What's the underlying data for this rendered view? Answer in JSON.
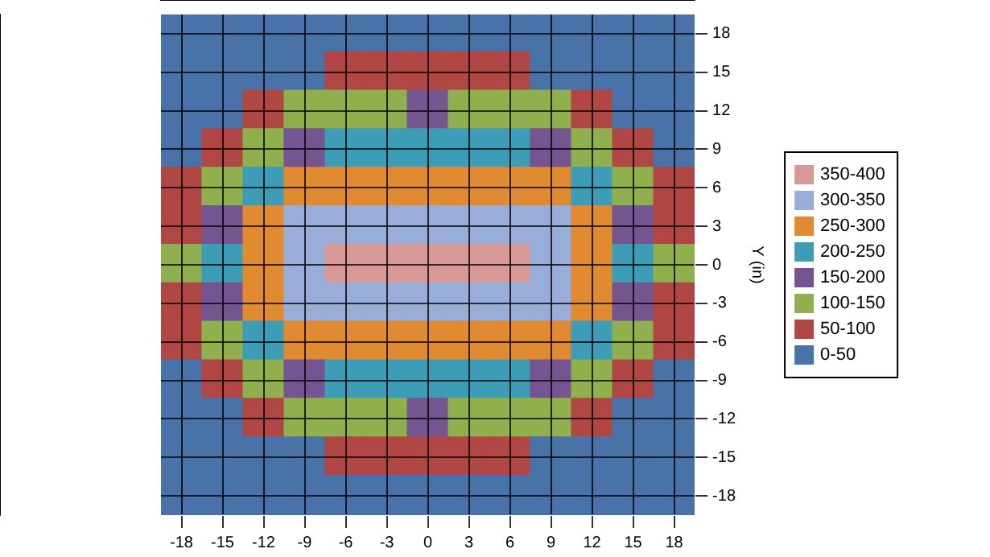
{
  "chart_data": {
    "type": "heatmap",
    "ylabel": "Y (in)",
    "categories": [
      "-18",
      "-15",
      "-12",
      "-9",
      "-6",
      "-3",
      "0",
      "3",
      "6",
      "9",
      "12",
      "15",
      "18"
    ],
    "y_categories": [
      "18",
      "15",
      "12",
      "9",
      "6",
      "3",
      "0",
      "-3",
      "-6",
      "-9",
      "-12",
      "-15",
      "-18"
    ],
    "cells": [
      [
        25,
        25,
        25,
        25,
        25,
        25,
        25,
        25,
        25,
        25,
        25,
        25,
        25
      ],
      [
        25,
        25,
        25,
        25,
        75,
        75,
        75,
        75,
        75,
        25,
        25,
        25,
        25
      ],
      [
        25,
        25,
        75,
        125,
        125,
        125,
        175,
        125,
        125,
        125,
        75,
        25,
        25
      ],
      [
        25,
        75,
        125,
        175,
        225,
        225,
        225,
        225,
        225,
        175,
        125,
        75,
        25
      ],
      [
        75,
        125,
        225,
        275,
        275,
        275,
        275,
        275,
        275,
        275,
        225,
        125,
        75
      ],
      [
        75,
        175,
        275,
        325,
        325,
        325,
        325,
        325,
        325,
        325,
        275,
        175,
        75
      ],
      [
        125,
        225,
        275,
        325,
        375,
        375,
        375,
        375,
        375,
        325,
        275,
        225,
        125
      ],
      [
        75,
        175,
        275,
        325,
        325,
        325,
        325,
        325,
        325,
        325,
        275,
        175,
        75
      ],
      [
        75,
        125,
        225,
        275,
        275,
        275,
        275,
        275,
        275,
        275,
        225,
        125,
        75
      ],
      [
        25,
        75,
        125,
        175,
        225,
        225,
        225,
        225,
        225,
        175,
        125,
        75,
        25
      ],
      [
        25,
        25,
        75,
        125,
        125,
        125,
        175,
        125,
        125,
        125,
        75,
        25,
        25
      ],
      [
        25,
        25,
        25,
        25,
        75,
        75,
        75,
        75,
        75,
        25,
        25,
        25,
        25
      ],
      [
        25,
        25,
        25,
        25,
        25,
        25,
        25,
        25,
        25,
        25,
        25,
        25,
        25
      ]
    ],
    "clim": [
      0,
      400
    ],
    "cticks": [
      {
        "value": 25,
        "label": "0-50"
      },
      {
        "value": 75,
        "label": "50-100"
      },
      {
        "value": 125,
        "label": "100-150"
      },
      {
        "value": 175,
        "label": "150-200"
      },
      {
        "value": 225,
        "label": "200-250"
      },
      {
        "value": 275,
        "label": "250-300"
      },
      {
        "value": 325,
        "label": "300-350"
      },
      {
        "value": 375,
        "label": "350-400"
      }
    ],
    "colors": [
      "#4872a8",
      "#b04744",
      "#8fb04c",
      "#74558f",
      "#3e9db6",
      "#e08a32",
      "#98aed8",
      "#d99895"
    ],
    "grid": true
  }
}
